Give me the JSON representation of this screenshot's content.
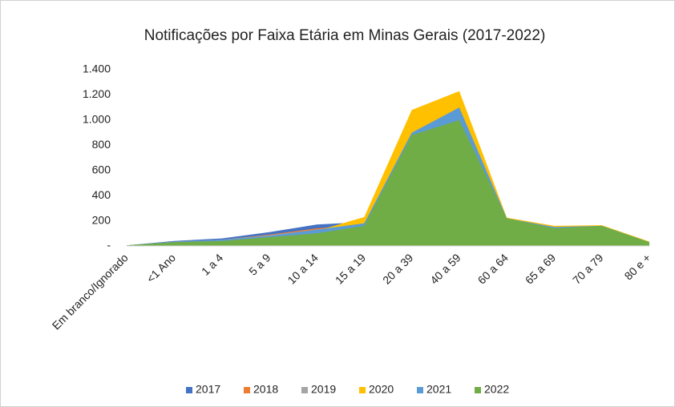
{
  "chart_data": {
    "type": "area",
    "title": "Notificações por Faixa Etária em Minas Gerais (2017-2022)",
    "categories": [
      "Em branco/Ignorado",
      "<1 Ano",
      "1 a 4",
      "5 a 9",
      "10 a 14",
      "15 a 19",
      "20 a 39",
      "40 a 59",
      "60 a 64",
      "65 a 69",
      "70 a 79",
      "80 e +"
    ],
    "series": [
      {
        "name": "2017",
        "color": "#4472c4",
        "values": [
          5,
          40,
          60,
          110,
          170,
          190,
          850,
          980,
          200,
          140,
          150,
          30
        ]
      },
      {
        "name": "2018",
        "color": "#ed7d31",
        "values": [
          5,
          35,
          50,
          90,
          140,
          170,
          820,
          950,
          200,
          140,
          150,
          30
        ]
      },
      {
        "name": "2019",
        "color": "#a5a5a5",
        "values": [
          5,
          35,
          50,
          85,
          130,
          160,
          800,
          930,
          190,
          130,
          140,
          30
        ]
      },
      {
        "name": "2020",
        "color": "#ffc000",
        "values": [
          5,
          30,
          45,
          75,
          120,
          230,
          1080,
          1230,
          225,
          160,
          165,
          35
        ]
      },
      {
        "name": "2021",
        "color": "#5b9bd5",
        "values": [
          5,
          35,
          50,
          80,
          130,
          180,
          900,
          1100,
          220,
          150,
          160,
          30
        ]
      },
      {
        "name": "2022",
        "color": "#70ad47",
        "values": [
          5,
          30,
          40,
          70,
          100,
          160,
          880,
          1000,
          220,
          140,
          160,
          30
        ]
      }
    ],
    "ylim": [
      0,
      1400
    ],
    "yticks": [
      {
        "value": 0,
        "label": "-"
      },
      200,
      400,
      600,
      800,
      {
        "value": 1000,
        "label": "1.000"
      },
      {
        "value": 1200,
        "label": "1.200"
      },
      {
        "value": 1400,
        "label": "1.400"
      }
    ],
    "legend": "bottom"
  }
}
